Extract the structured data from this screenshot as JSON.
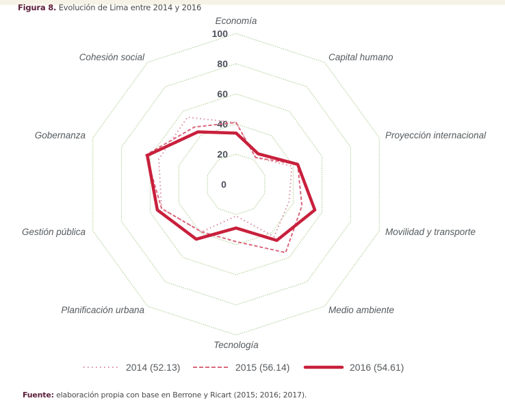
{
  "figure": {
    "label": "Figura 8.",
    "title": "Evolución de Lima entre 2014 y 2016"
  },
  "source": {
    "label": "Fuente:",
    "text": "elaboración propia con base en Berrone y Ricart (2015; 2016; 2017)."
  },
  "legend": {
    "items": [
      {
        "label": "2014 (52.13)",
        "style": "dotted"
      },
      {
        "label": "2015 (56.14)",
        "style": "dashed"
      },
      {
        "label": "2016 (54.61)",
        "style": "solid"
      }
    ]
  },
  "colors": {
    "series_2014": "#d98a9a",
    "series_2015": "#d9667a",
    "series_2016": "#c8203c",
    "grid": "#a9cc8f",
    "title_accent": "#5b1f3a"
  },
  "chart_data": {
    "type": "radar",
    "title": "Evolución de Lima entre 2014 y 2016",
    "categories": [
      "Economía",
      "Capital humano",
      "Proyección internacional",
      "Movilidad y transporte",
      "Medio ambiente",
      "Tecnología",
      "Planificación urbana",
      "Gestión pública",
      "Gobernanza",
      "Cohesión social"
    ],
    "radial_ticks": [
      0,
      20,
      40,
      60,
      80,
      100
    ],
    "rlim": [
      0,
      100
    ],
    "grid": true,
    "legend_position": "bottom",
    "series": [
      {
        "name": "2014 (52.13)",
        "values": [
          41,
          22,
          39,
          37,
          43,
          21,
          39,
          52,
          54,
          55
        ]
      },
      {
        "name": "2015 (56.14)",
        "values": [
          41,
          22,
          43,
          46,
          56,
          38,
          39,
          52,
          63,
          47
        ]
      },
      {
        "name": "2016 (54.61)",
        "values": [
          34,
          25,
          43,
          55,
          46,
          29,
          45,
          55,
          62,
          43
        ]
      }
    ]
  }
}
